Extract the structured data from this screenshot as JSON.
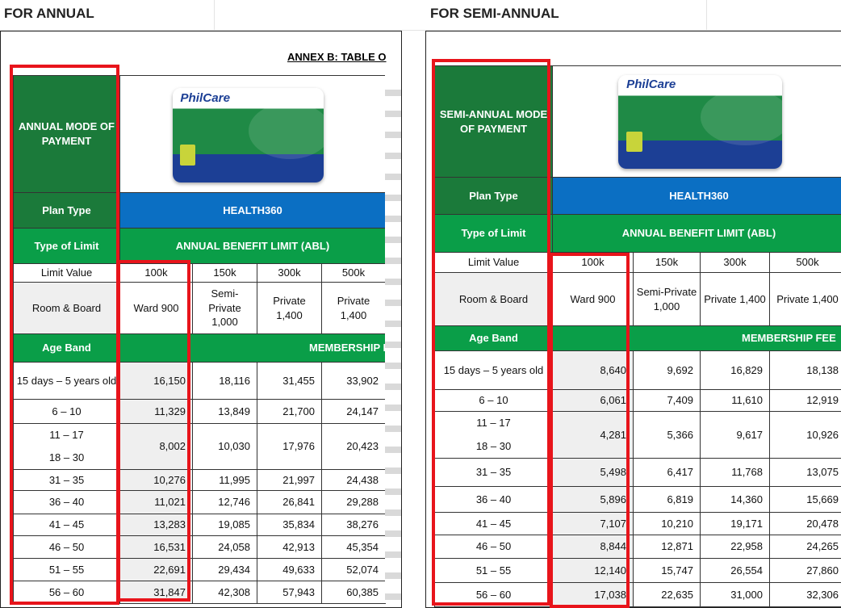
{
  "annual": {
    "heading": "FOR ANNUAL",
    "annex": "ANNEX B: TABLE O",
    "brand": "PhilCare",
    "mode_label": "ANNUAL MODE OF PAYMENT",
    "plan_type_label": "Plan Type",
    "plan_type": "HEALTH360",
    "limit_type_label": "Type of Limit",
    "limit_type": "ANNUAL BENEFIT LIMIT (ABL)",
    "limit_value_label": "Limit Value",
    "limit_values": [
      "100k",
      "150k",
      "300k",
      "500k"
    ],
    "room_board_label": "Room & Board",
    "room_board": [
      "Ward 900",
      "Semi-Private 1,000",
      "Private 1,400",
      "Private 1,400"
    ],
    "age_band_label": "Age Band",
    "membership_label": "MEMBERSHIP F",
    "rows": [
      {
        "ages": [
          "15 days – 5 years old"
        ],
        "values": [
          "16,150",
          "18,116",
          "31,455",
          "33,902"
        ]
      },
      {
        "ages": [
          "6 – 10"
        ],
        "values": [
          "11,329",
          "13,849",
          "21,700",
          "24,147"
        ]
      },
      {
        "ages": [
          "11 – 17",
          "18 – 30"
        ],
        "values": [
          "8,002",
          "10,030",
          "17,976",
          "20,423"
        ]
      },
      {
        "ages": [
          "31 – 35"
        ],
        "values": [
          "10,276",
          "11,995",
          "21,997",
          "24,438"
        ]
      },
      {
        "ages": [
          "36 – 40"
        ],
        "values": [
          "11,021",
          "12,746",
          "26,841",
          "29,288"
        ]
      },
      {
        "ages": [
          "41 – 45"
        ],
        "values": [
          "13,283",
          "19,085",
          "35,834",
          "38,276"
        ]
      },
      {
        "ages": [
          "46 – 50"
        ],
        "values": [
          "16,531",
          "24,058",
          "42,913",
          "45,354"
        ]
      },
      {
        "ages": [
          "51 – 55"
        ],
        "values": [
          "22,691",
          "29,434",
          "49,633",
          "52,074"
        ]
      },
      {
        "ages": [
          "56 – 60"
        ],
        "values": [
          "31,847",
          "42,308",
          "57,943",
          "60,385"
        ]
      }
    ]
  },
  "semi_annual": {
    "heading": "FOR SEMI-ANNUAL",
    "brand": "PhilCare",
    "mode_label": "SEMI-ANNUAL MODE OF PAYMENT",
    "plan_type_label": "Plan Type",
    "plan_type": "HEALTH360",
    "limit_type_label": "Type of Limit",
    "limit_type": "ANNUAL BENEFIT LIMIT (ABL)",
    "limit_value_label": "Limit Value",
    "limit_values": [
      "100k",
      "150k",
      "300k",
      "500k"
    ],
    "room_board_label": "Room & Board",
    "room_board": [
      "Ward 900",
      "Semi-Private 1,000",
      "Private 1,400",
      "Private 1,400"
    ],
    "age_band_label": "Age Band",
    "membership_label": "MEMBERSHIP FEE",
    "rows": [
      {
        "ages": [
          "15 days – 5 years old"
        ],
        "values": [
          "8,640",
          "9,692",
          "16,829",
          "18,138"
        ]
      },
      {
        "ages": [
          "6 – 10"
        ],
        "values": [
          "6,061",
          "7,409",
          "11,610",
          "12,919"
        ]
      },
      {
        "ages": [
          "11 – 17",
          "18 – 30"
        ],
        "values": [
          "4,281",
          "5,366",
          "9,617",
          "10,926"
        ]
      },
      {
        "ages": [
          "31 – 35"
        ],
        "values": [
          "5,498",
          "6,417",
          "11,768",
          "13,075"
        ]
      },
      {
        "ages": [
          "36 – 40"
        ],
        "values": [
          "5,896",
          "6,819",
          "14,360",
          "15,669"
        ]
      },
      {
        "ages": [
          "41 – 45"
        ],
        "values": [
          "7,107",
          "10,210",
          "19,171",
          "20,478"
        ]
      },
      {
        "ages": [
          "46 – 50"
        ],
        "values": [
          "8,844",
          "12,871",
          "22,958",
          "24,265"
        ]
      },
      {
        "ages": [
          "51 – 55"
        ],
        "values": [
          "12,140",
          "15,747",
          "26,554",
          "27,860"
        ]
      },
      {
        "ages": [
          "56 – 60"
        ],
        "values": [
          "17,038",
          "22,635",
          "31,000",
          "32,306"
        ]
      }
    ]
  }
}
